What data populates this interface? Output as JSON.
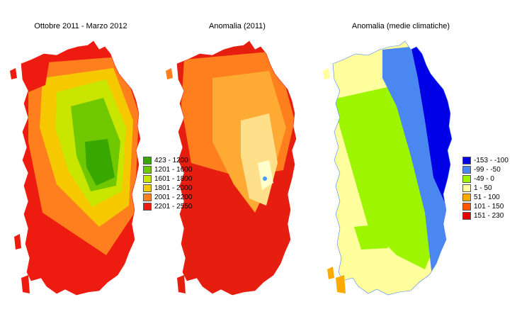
{
  "maps": [
    {
      "title": "Ottobre 2011 - Marzo 2012",
      "legend": [
        {
          "label": "423 - 1200",
          "color": "#38a800"
        },
        {
          "label": "1201 - 1600",
          "color": "#70c800"
        },
        {
          "label": "1601 - 1800",
          "color": "#c8e600"
        },
        {
          "label": "1801 - 2000",
          "color": "#f5c800"
        },
        {
          "label": "2001 - 2200",
          "color": "#ff7f1e"
        },
        {
          "label": "2201 - 2550",
          "color": "#ee1c10"
        }
      ]
    },
    {
      "title": "Anomalia (2011)",
      "legend": []
    },
    {
      "title": "Anomalia (medie climatiche)",
      "legend": [
        {
          "label": "-153 - -100",
          "color": "#0000e6"
        },
        {
          "label": "-99 - -50",
          "color": "#4b87f0"
        },
        {
          "label": "-49 - 0",
          "color": "#9ef500"
        },
        {
          "label": "1 - 50",
          "color": "#ffff9e"
        },
        {
          "label": "51 - 100",
          "color": "#ffaa00"
        },
        {
          "label": "101 - 150",
          "color": "#ff5500"
        },
        {
          "label": "151 - 230",
          "color": "#e60000"
        }
      ]
    }
  ]
}
